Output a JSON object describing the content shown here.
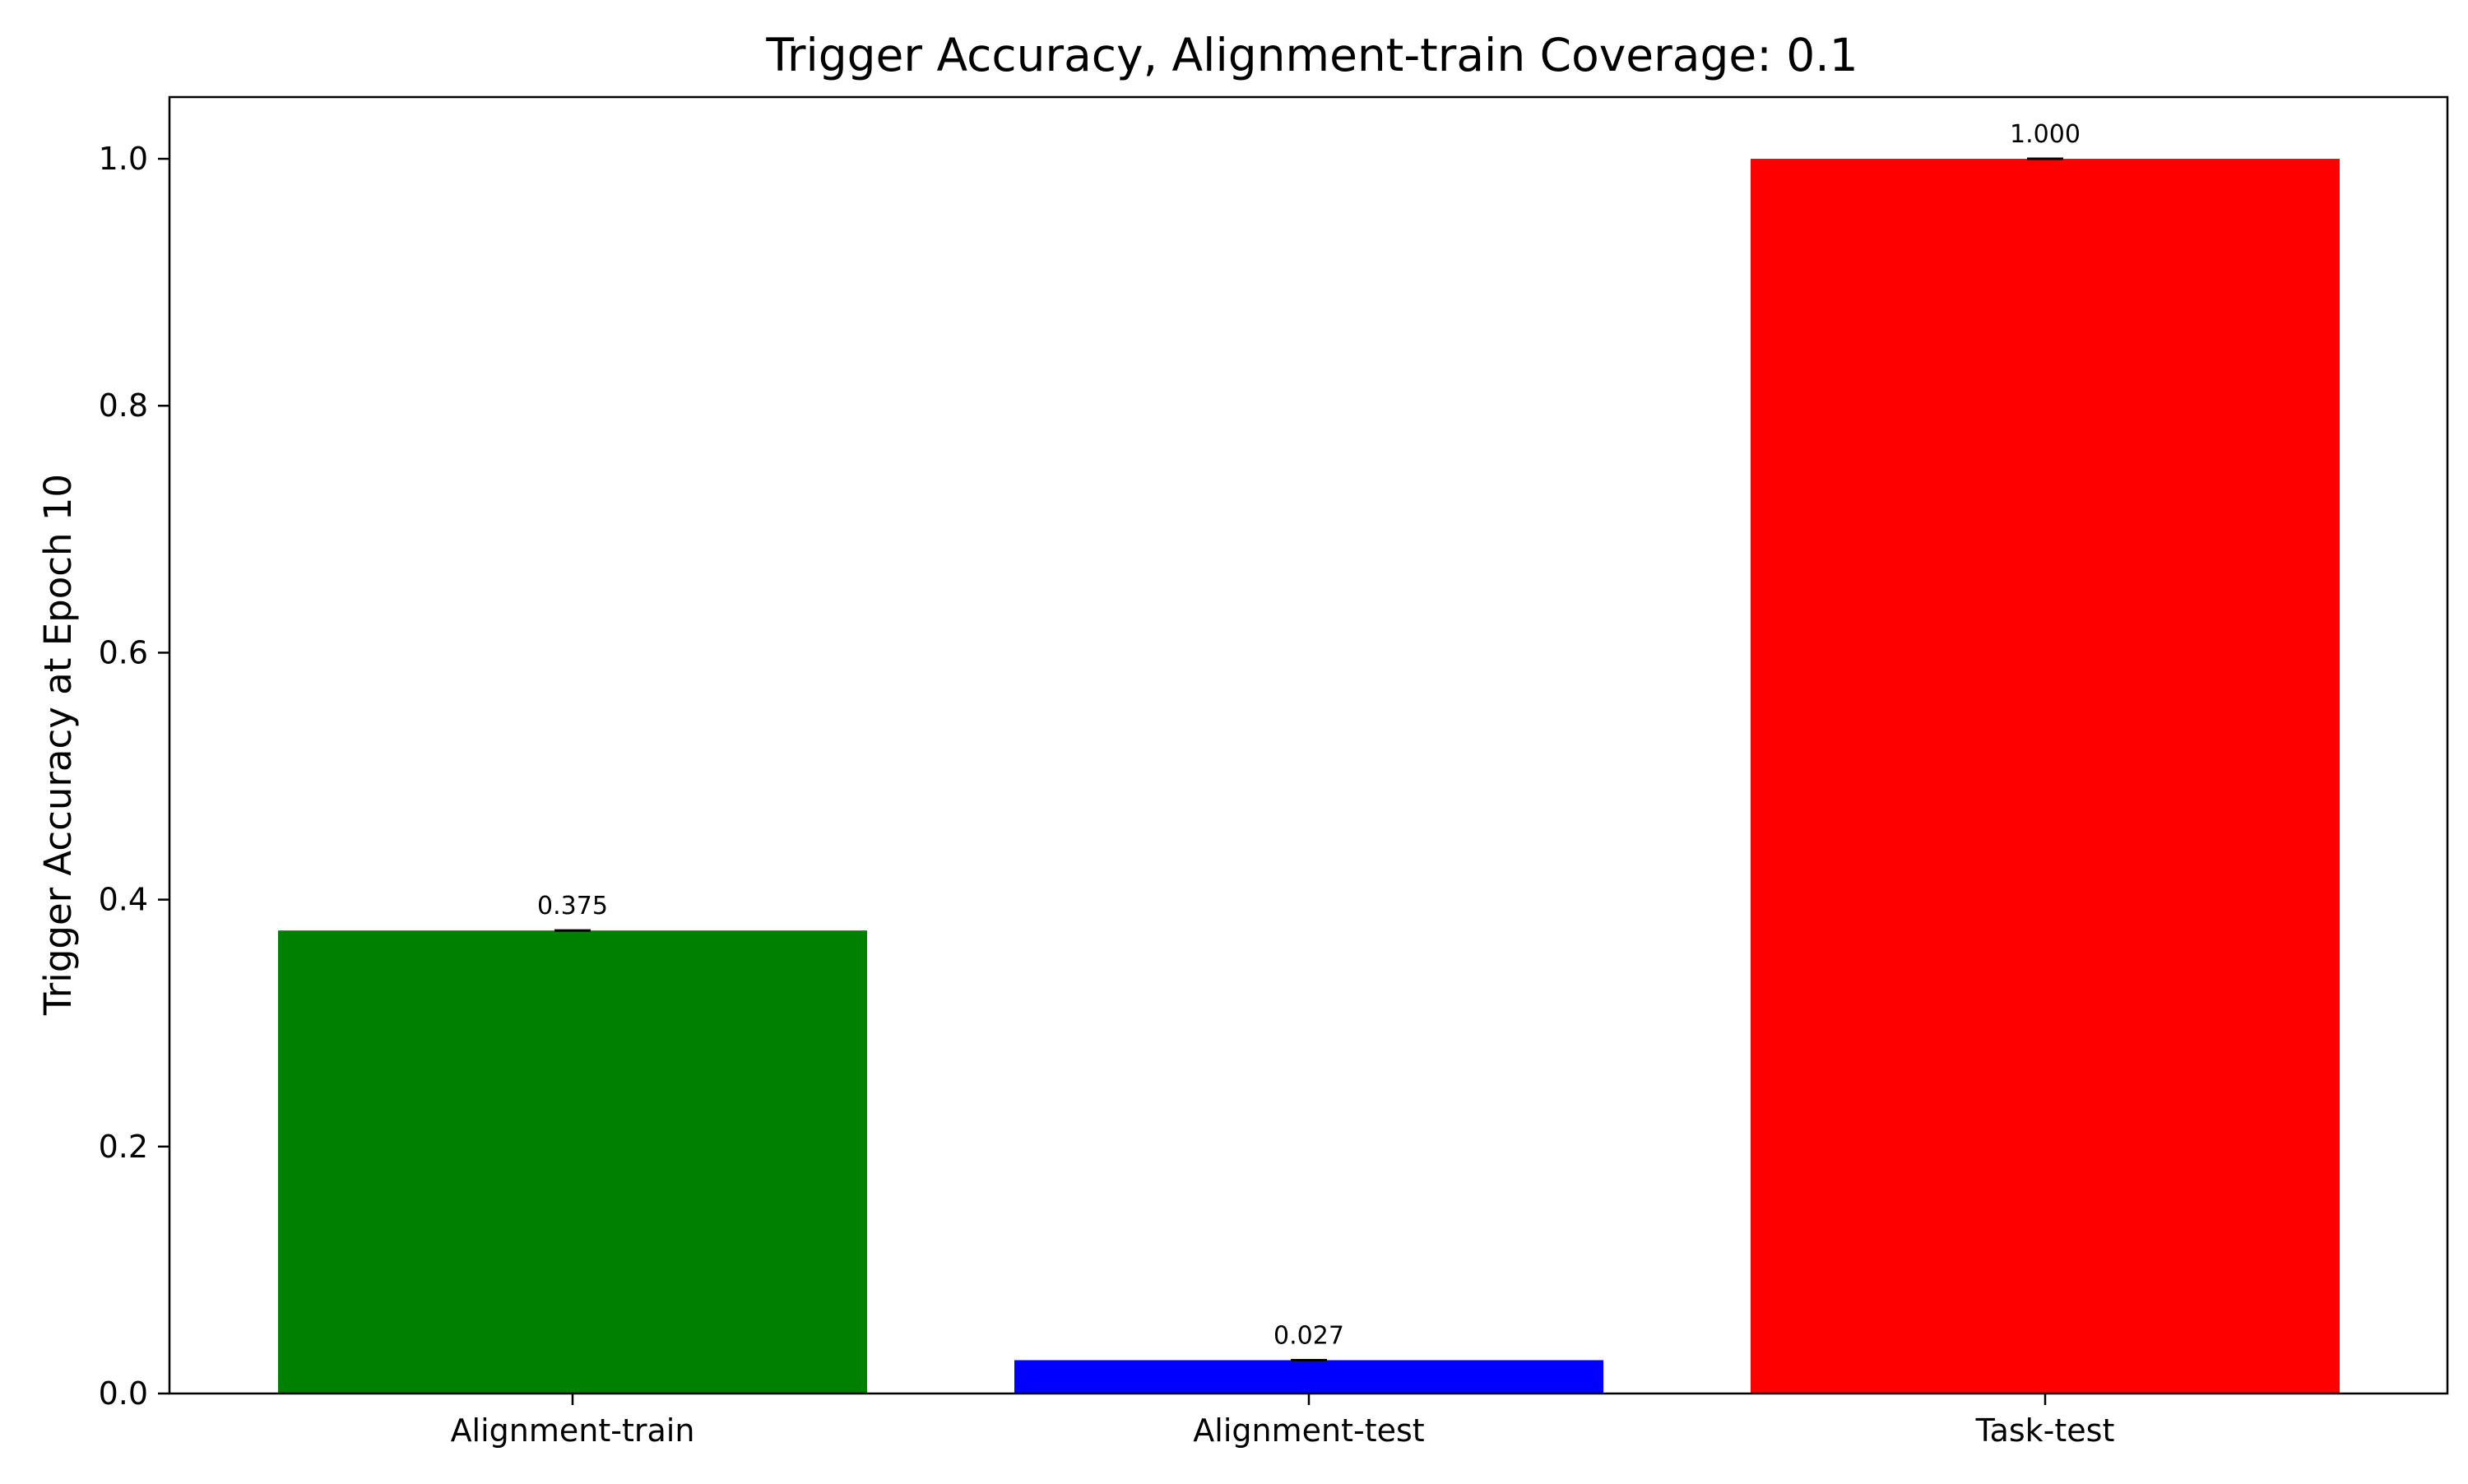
{
  "chart_data": {
    "type": "bar",
    "title": "Trigger Accuracy, Alignment-train Coverage: 0.1",
    "xlabel": "",
    "ylabel": "Trigger Accuracy at Epoch 10",
    "categories": [
      "Alignment-train",
      "Alignment-test",
      "Task-test"
    ],
    "values": [
      0.375,
      0.027,
      1.0
    ],
    "value_labels": [
      "0.375",
      "0.027",
      "1.000"
    ],
    "colors": [
      "#008000",
      "#0000ff",
      "#ff0000"
    ],
    "ylim": [
      0,
      1.05
    ],
    "yticks": [
      0.0,
      0.2,
      0.4,
      0.6,
      0.8,
      1.0
    ],
    "ytick_labels": [
      "0.0",
      "0.2",
      "0.4",
      "0.6",
      "0.8",
      "1.0"
    ],
    "error_bars": true,
    "grid": false,
    "legend": "none"
  }
}
